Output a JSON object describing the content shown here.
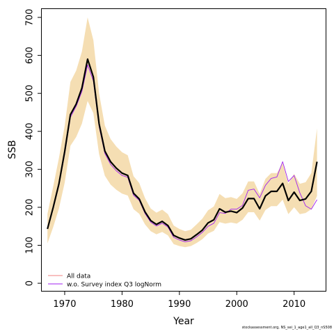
{
  "chart_data": {
    "type": "line",
    "xlabel": "Year",
    "ylabel": "SSB",
    "xlim": [
      1966,
      2015.5
    ],
    "ylim": [
      -20,
      722
    ],
    "xticks": [
      1970,
      1980,
      1990,
      2000,
      2010
    ],
    "yticks": [
      0,
      100,
      200,
      300,
      400,
      500,
      600,
      700
    ],
    "legend": {
      "placement": "bottom-left",
      "entries": [
        {
          "label": "All data",
          "color": "#f08080"
        },
        {
          "label": "w.o. Survey index Q3 logNorm",
          "color": "#a020f0"
        }
      ]
    },
    "colors": {
      "band": "#f5deb3",
      "main": "#000000",
      "all_data": "#f08080",
      "alt": "#a020f0"
    },
    "x": [
      1967,
      1968,
      1969,
      1970,
      1971,
      1972,
      1973,
      1974,
      1975,
      1976,
      1977,
      1978,
      1979,
      1980,
      1981,
      1982,
      1983,
      1984,
      1985,
      1986,
      1987,
      1988,
      1989,
      1990,
      1991,
      1992,
      1993,
      1994,
      1995,
      1996,
      1997,
      1998,
      1999,
      2000,
      2001,
      2002,
      2003,
      2004,
      2005,
      2006,
      2007,
      2008,
      2009,
      2010,
      2011,
      2012,
      2013,
      2014
    ],
    "series": [
      {
        "name": "All data",
        "values": [
          143,
          200,
          262,
          347,
          444,
          472,
          514,
          590,
          543,
          420,
          348,
          320,
          303,
          290,
          284,
          237,
          222,
          188,
          165,
          155,
          163,
          152,
          126,
          119,
          114,
          117,
          128,
          140,
          159,
          167,
          196,
          187,
          190,
          186,
          198,
          223,
          223,
          196,
          230,
          242,
          242,
          263,
          218,
          240,
          218,
          222,
          242,
          320
        ]
      },
      {
        "name": "w.o. Survey index Q3 logNorm",
        "values": [
          143,
          197,
          258,
          341,
          437,
          466,
          505,
          575,
          533,
          413,
          342,
          313,
          296,
          284,
          279,
          232,
          218,
          184,
          161,
          151,
          158,
          148,
          121,
          114,
          109,
          112,
          122,
          134,
          150,
          158,
          186,
          184,
          195,
          195,
          205,
          245,
          248,
          225,
          258,
          276,
          280,
          320,
          268,
          284,
          238,
          204,
          195,
          220
        ]
      }
    ],
    "band": {
      "low": [
        105,
        148,
        197,
        265,
        362,
        385,
        420,
        480,
        448,
        340,
        283,
        260,
        246,
        236,
        231,
        195,
        183,
        155,
        137,
        129,
        135,
        126,
        103,
        98,
        95,
        98,
        106,
        116,
        131,
        138,
        161,
        157,
        160,
        157,
        167,
        187,
        187,
        165,
        193,
        203,
        203,
        220,
        182,
        200,
        182,
        185,
        195,
        230
      ],
      "high": [
        183,
        255,
        330,
        415,
        530,
        560,
        610,
        700,
        640,
        500,
        415,
        380,
        360,
        345,
        337,
        282,
        264,
        224,
        197,
        186,
        194,
        182,
        152,
        143,
        137,
        141,
        155,
        170,
        192,
        202,
        235,
        224,
        227,
        222,
        237,
        268,
        268,
        235,
        275,
        290,
        290,
        316,
        262,
        288,
        262,
        266,
        290,
        408
      ]
    }
  },
  "footnote": "stockassessment.org, NS_sei_1_age1_all_Q3_nS508"
}
